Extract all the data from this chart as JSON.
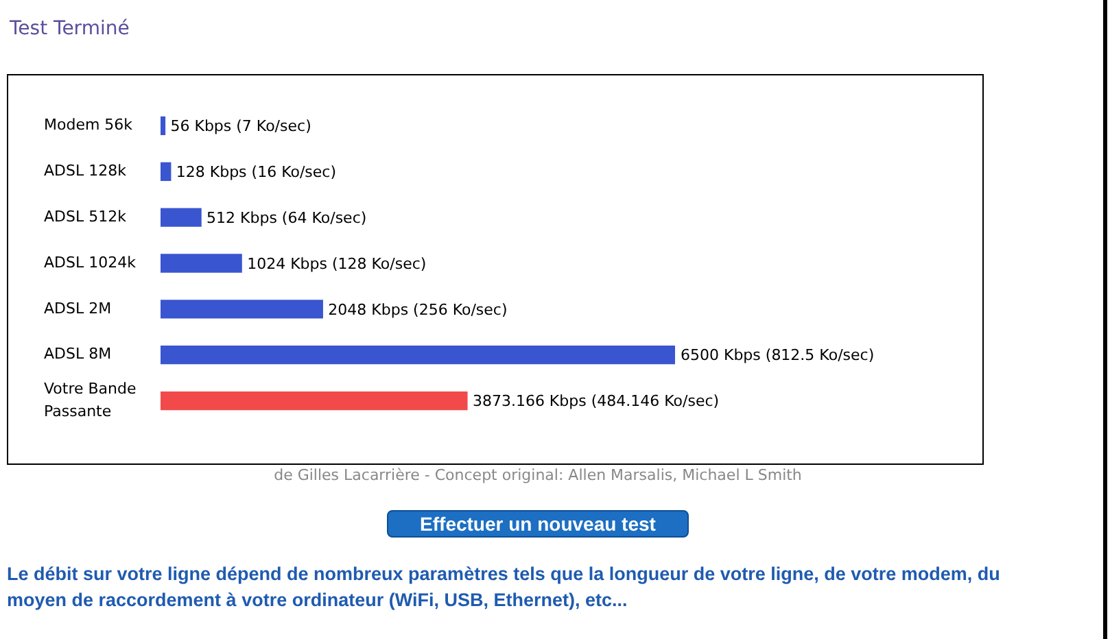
{
  "chart_data": {
    "type": "bar",
    "orientation": "horizontal",
    "title": "Test Terminé",
    "categories": [
      "Modem 56k",
      "ADSL 128k",
      "ADSL 512k",
      "ADSL 1024k",
      "ADSL 2M",
      "ADSL 8M",
      "Votre Bande Passante"
    ],
    "values": [
      56,
      128,
      512,
      1024,
      2048,
      6500,
      3873.166
    ],
    "colors": [
      "#3a55d0",
      "#3a55d0",
      "#3a55d0",
      "#3a55d0",
      "#3a55d0",
      "#3a55d0",
      "#f24a4a"
    ],
    "value_labels": [
      "56 Kbps (7 Ko/sec)",
      "128 Kbps (16 Ko/sec)",
      "512 Kbps (64 Ko/sec)",
      "1024 Kbps (128 Ko/sec)",
      "2048 Kbps (256 Ko/sec)",
      "6500 Kbps (812.5 Ko/sec)",
      "3873.166 Kbps (484.146 Ko/sec)"
    ],
    "annotations": [
      "de Gilles Lacarrière - Concept original: Allen Marsalis, Michael L Smith",
      "Effectuer un nouveau test",
      "Le débit sur votre ligne dépend de nombreux paramètres tels que la longueur de votre ligne, de votre modem, du moyen de raccordement à votre ordinateur (WiFi, USB, Ethernet), etc..."
    ],
    "tick_labels": "y",
    "grid": false,
    "legend": false
  }
}
